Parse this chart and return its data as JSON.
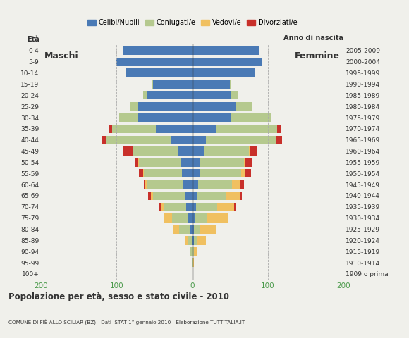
{
  "age_groups": [
    "100+",
    "95-99",
    "90-94",
    "85-89",
    "80-84",
    "75-79",
    "70-74",
    "65-69",
    "60-64",
    "55-59",
    "50-54",
    "45-49",
    "40-44",
    "35-39",
    "30-34",
    "25-29",
    "20-24",
    "15-19",
    "10-14",
    "5-9",
    "0-4"
  ],
  "birth_years": [
    "1909 o prima",
    "1910-1914",
    "1915-1919",
    "1920-1924",
    "1925-1929",
    "1930-1934",
    "1935-1939",
    "1940-1944",
    "1945-1949",
    "1950-1954",
    "1955-1959",
    "1960-1964",
    "1965-1969",
    "1970-1974",
    "1975-1979",
    "1980-1984",
    "1985-1989",
    "1990-1994",
    "1995-1999",
    "2000-2004",
    "2005-2009"
  ],
  "males_celibi": [
    0,
    0,
    0,
    1,
    2,
    5,
    8,
    10,
    12,
    14,
    15,
    18,
    28,
    48,
    72,
    72,
    60,
    52,
    88,
    100,
    92
  ],
  "males_coniugati": [
    0,
    1,
    2,
    5,
    15,
    22,
    30,
    42,
    48,
    50,
    55,
    60,
    85,
    58,
    25,
    10,
    5,
    1,
    0,
    0,
    0
  ],
  "males_vedovi": [
    0,
    0,
    0,
    3,
    8,
    10,
    4,
    3,
    2,
    1,
    1,
    0,
    0,
    0,
    0,
    0,
    0,
    0,
    0,
    0,
    0
  ],
  "males_divorziati": [
    0,
    0,
    0,
    0,
    0,
    0,
    2,
    3,
    2,
    5,
    4,
    14,
    7,
    4,
    0,
    0,
    0,
    0,
    0,
    0,
    0
  ],
  "females_nubili": [
    0,
    0,
    1,
    2,
    2,
    3,
    5,
    6,
    8,
    10,
    10,
    15,
    18,
    32,
    52,
    58,
    52,
    50,
    82,
    92,
    88
  ],
  "females_coniugate": [
    0,
    0,
    1,
    4,
    8,
    16,
    28,
    38,
    45,
    55,
    58,
    60,
    92,
    80,
    52,
    22,
    8,
    2,
    0,
    0,
    0
  ],
  "females_vedove": [
    0,
    2,
    4,
    12,
    22,
    28,
    22,
    20,
    10,
    5,
    2,
    1,
    1,
    0,
    0,
    0,
    0,
    0,
    0,
    0,
    0
  ],
  "females_divorziate": [
    0,
    0,
    0,
    0,
    0,
    0,
    2,
    2,
    5,
    8,
    9,
    10,
    8,
    5,
    0,
    0,
    0,
    0,
    0,
    0,
    0
  ],
  "colors": {
    "celibi": "#4a7ab5",
    "coniugati": "#b5c98e",
    "vedovi": "#f0c060",
    "divorziati": "#c8302a"
  },
  "xlim": 200,
  "title": "Popolazione per età, sesso e stato civile - 2010",
  "subtitle": "COMUNE DI FIÈ ALLO SCILIAR (BZ) - Dati ISTAT 1° gennaio 2010 - Elaborazione TUTTITALIA.IT",
  "ylabel_left": "Età",
  "ylabel_right": "Anno di nascita",
  "legend_labels": [
    "Celibi/Nubili",
    "Coniugati/e",
    "Vedovi/e",
    "Divorziati/e"
  ],
  "bg_color": "#f0f0eb"
}
